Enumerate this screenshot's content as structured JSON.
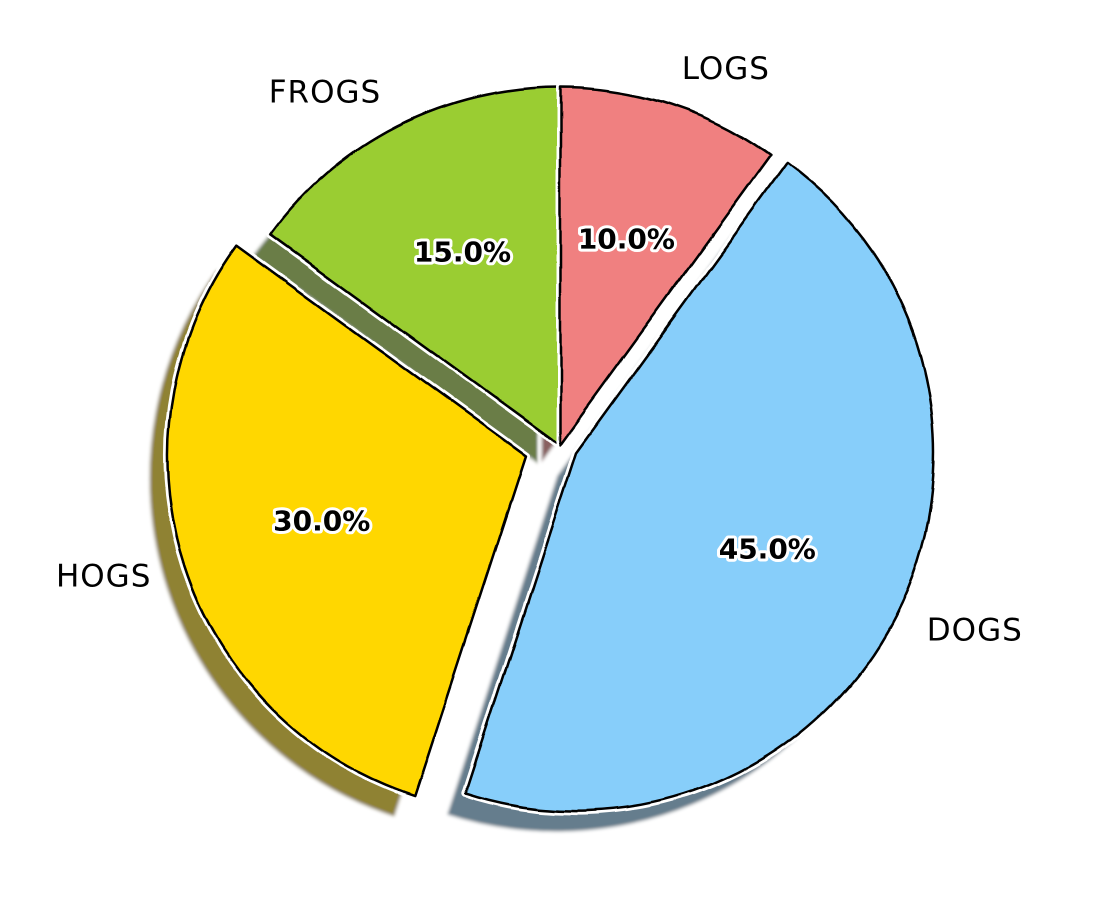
{
  "chart_data": {
    "type": "pie",
    "categories": [
      "FROGS",
      "HOGS",
      "DOGS",
      "LOGS"
    ],
    "values": [
      15.0,
      30.0,
      45.0,
      10.0
    ],
    "percent_labels": [
      "15.0%",
      "30.0%",
      "45.0%",
      "10.0%"
    ],
    "colors": [
      "#9ACD32",
      "#FFD700",
      "#87CEFA",
      "#F08080"
    ],
    "explode": [
      0,
      0.1,
      0.05,
      0
    ],
    "shadow": true,
    "start_angle": 90,
    "direction": "counterclockwise",
    "style": "xkcd"
  }
}
